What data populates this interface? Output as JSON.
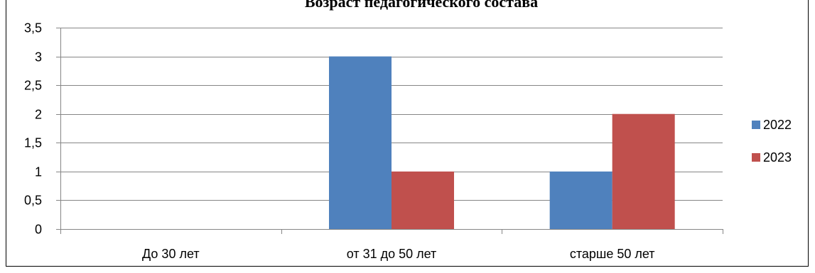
{
  "chart_data": {
    "type": "bar",
    "title": "Возраст педагогического состава",
    "categories": [
      "До 30 лет",
      "от 31 до 50 лет",
      "старше 50 лет"
    ],
    "series": [
      {
        "name": "2022",
        "values": [
          0,
          3,
          1
        ],
        "color": "#4F81BD"
      },
      {
        "name": "2023",
        "values": [
          0,
          1,
          2
        ],
        "color": "#C0504D"
      }
    ],
    "xlabel": "",
    "ylabel": "",
    "ylim": [
      0,
      3.5
    ],
    "y_ticks": [
      "0",
      "0,5",
      "1",
      "1,5",
      "2",
      "2,5",
      "3",
      "3,5"
    ],
    "grid": true,
    "legend_position": "right"
  }
}
